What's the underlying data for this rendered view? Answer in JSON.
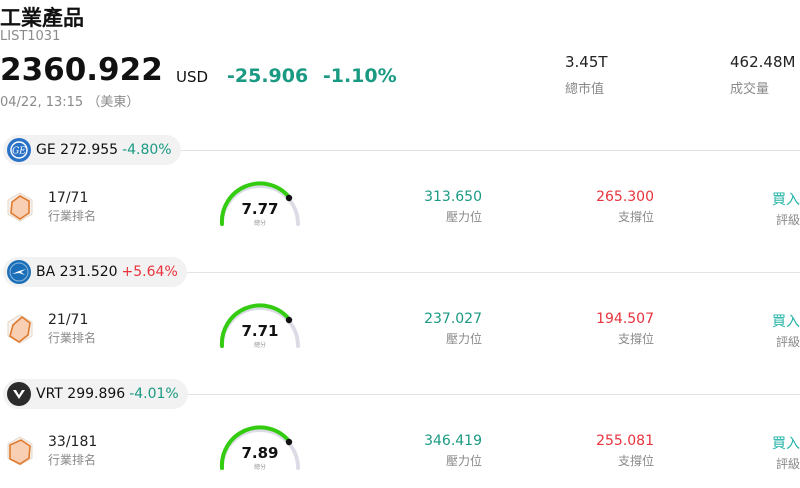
{
  "header": {
    "title": "工業產品",
    "code": "LIST1031",
    "price": "2360.922",
    "currency": "USD",
    "change": "-25.906",
    "change_pct": "-1.10%",
    "timestamp": "04/22, 13:15 （美東）",
    "market_cap_value": "3.45T",
    "market_cap_label": "總市值",
    "volume_value": "462.48M",
    "volume_label": "成交量"
  },
  "colors": {
    "down": "#1a9a83",
    "up": "#e8333d",
    "gauge": "#33cc11",
    "rating": "#22b3a6"
  },
  "stocks": [
    {
      "symbol": "GE",
      "price": "272.955",
      "change_pct": "-4.80%",
      "direction": "down",
      "logo": "ge-logo-icon",
      "rank": "17/71",
      "rank_label": "行業排名",
      "score": "7.77",
      "score_caption": "總分",
      "resistance": "313.650",
      "resistance_label": "壓力位",
      "support": "265.300",
      "support_label": "支撐位",
      "rating": "買入",
      "rating_label": "評級"
    },
    {
      "symbol": "BA",
      "price": "231.520",
      "change_pct": "+5.64%",
      "direction": "up",
      "logo": "boeing-logo-icon",
      "rank": "21/71",
      "rank_label": "行業排名",
      "score": "7.71",
      "score_caption": "總分",
      "resistance": "237.027",
      "resistance_label": "壓力位",
      "support": "194.507",
      "support_label": "支撐位",
      "rating": "買入",
      "rating_label": "評級"
    },
    {
      "symbol": "VRT",
      "price": "299.896",
      "change_pct": "-4.01%",
      "direction": "down",
      "logo": "vertiv-logo-icon",
      "rank": "33/181",
      "rank_label": "行業排名",
      "score": "7.89",
      "score_caption": "總分",
      "resistance": "346.419",
      "resistance_label": "壓力位",
      "support": "255.081",
      "support_label": "支撐位",
      "rating": "買入",
      "rating_label": "評級"
    }
  ]
}
